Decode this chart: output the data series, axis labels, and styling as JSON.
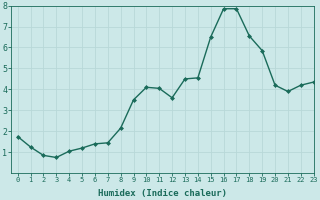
{
  "x": [
    0,
    1,
    2,
    3,
    4,
    5,
    6,
    7,
    8,
    9,
    10,
    11,
    12,
    13,
    14,
    15,
    16,
    17,
    18,
    19,
    20,
    21,
    22,
    23
  ],
  "y": [
    1.75,
    1.25,
    0.85,
    0.75,
    1.05,
    1.2,
    1.4,
    1.45,
    2.15,
    3.5,
    4.1,
    4.05,
    3.6,
    4.5,
    4.55,
    6.5,
    7.85,
    7.85,
    6.55,
    5.85,
    4.2,
    3.9,
    4.2,
    4.35
  ],
  "xlabel": "Humidex (Indice chaleur)",
  "ylim": [
    0,
    8
  ],
  "xlim": [
    -0.5,
    23
  ],
  "line_color": "#1a6b5a",
  "bg_color": "#cce8e8",
  "grid_color": "#b8d8d8",
  "tick_label_color": "#1a6b5a",
  "label_color": "#1a6b5a",
  "marker": "D",
  "markersize": 2.0,
  "linewidth": 1.0,
  "tick_fontsize": 5.0,
  "ylabel_ticks": [
    1,
    2,
    3,
    4,
    5,
    6,
    7,
    8
  ],
  "xlabel_fontsize": 6.5
}
